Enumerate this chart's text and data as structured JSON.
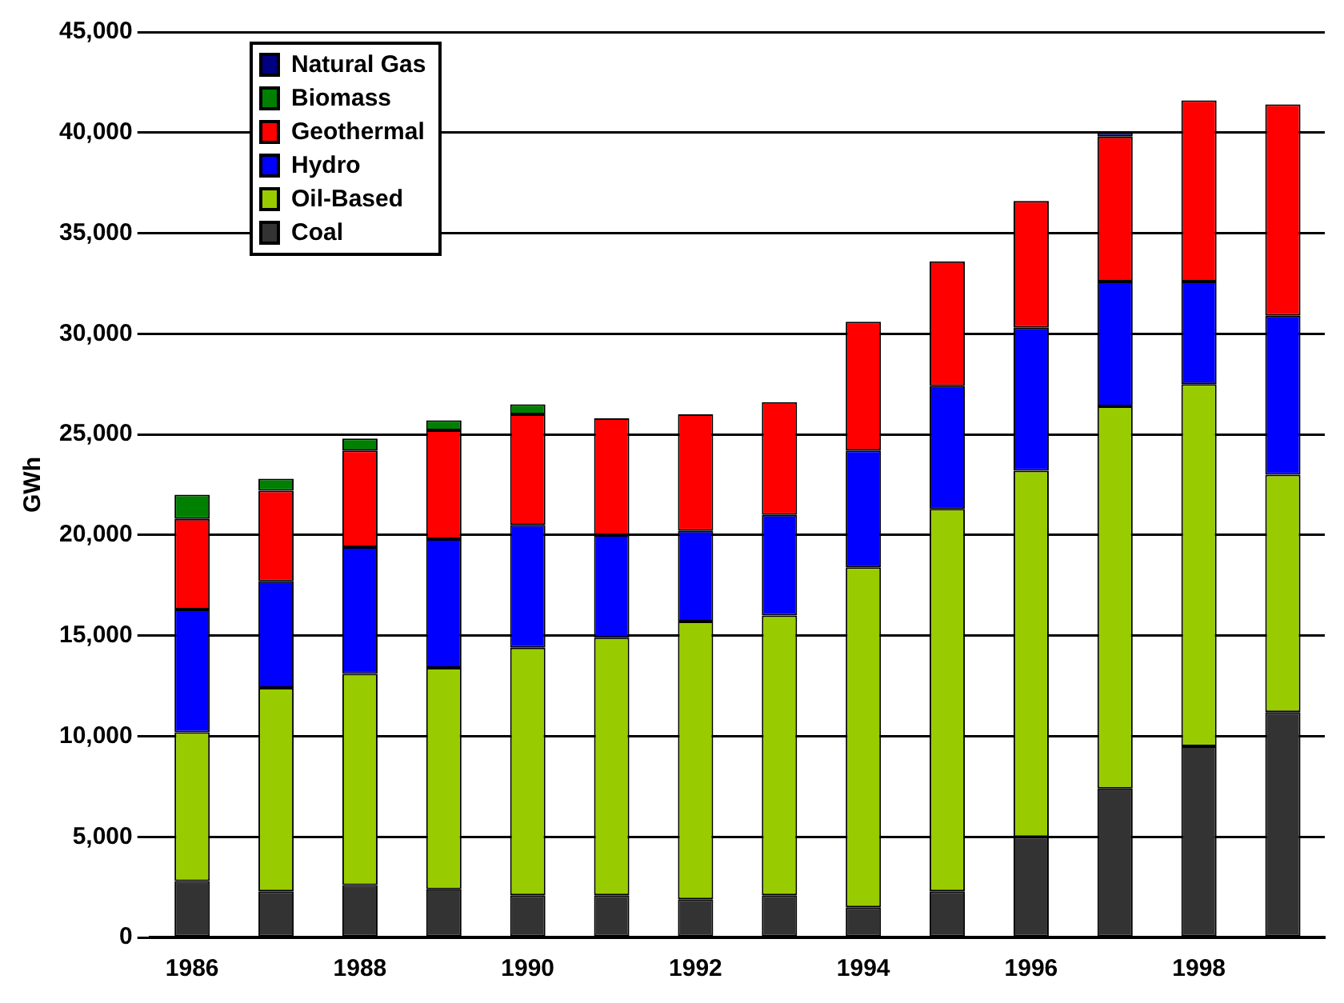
{
  "chart_data": {
    "type": "bar",
    "stacked": true,
    "ylabel": "GWh",
    "categories": [
      "1986",
      null,
      "1988",
      null,
      "1990",
      null,
      "1992",
      null,
      "1994",
      null,
      "1996",
      null,
      "1998",
      null
    ],
    "series": [
      {
        "name": "Coal",
        "color": "#333333",
        "values": [
          2800,
          2300,
          2600,
          2400,
          2100,
          2100,
          1900,
          2100,
          1500,
          2300,
          5000,
          7400,
          9500,
          11200
        ]
      },
      {
        "name": "Oil-Based",
        "color": "#99cc00",
        "values": [
          7400,
          10100,
          10500,
          11000,
          12300,
          12800,
          13800,
          13900,
          16900,
          19000,
          18200,
          19000,
          18000,
          11800
        ]
      },
      {
        "name": "Hydro",
        "color": "#0000ff",
        "values": [
          6100,
          5300,
          6300,
          6400,
          6100,
          5100,
          4500,
          5000,
          5800,
          6100,
          7100,
          6200,
          5100,
          7900
        ]
      },
      {
        "name": "Geothermal",
        "color": "#ff0000",
        "values": [
          4500,
          4500,
          4800,
          5400,
          5500,
          5800,
          5800,
          5600,
          6400,
          6200,
          6300,
          7200,
          9000,
          10500
        ]
      },
      {
        "name": "Biomass",
        "color": "#008000",
        "values": [
          1200,
          600,
          600,
          500,
          500,
          null,
          null,
          null,
          null,
          null,
          null,
          null,
          null,
          null
        ]
      },
      {
        "name": "Natural Gas",
        "color": "#000080",
        "values": [
          null,
          null,
          null,
          null,
          null,
          null,
          null,
          null,
          null,
          null,
          null,
          200,
          null,
          null
        ]
      }
    ],
    "ylim": [
      0,
      45000
    ],
    "yticks": [
      0,
      {
        "value": 5000,
        "label": "5,000"
      },
      {
        "value": 10000,
        "label": "10,000"
      },
      {
        "value": 15000,
        "label": "15,000"
      },
      {
        "value": 20000,
        "label": "20,000"
      },
      {
        "value": 25000,
        "label": "25,000"
      },
      {
        "value": 30000,
        "label": "30,000"
      },
      {
        "value": 35000,
        "label": "35,000"
      },
      {
        "value": 40000,
        "label": "40,000"
      },
      {
        "value": 45000,
        "label": "45,000"
      }
    ],
    "grid": "y",
    "legend": "top left"
  }
}
